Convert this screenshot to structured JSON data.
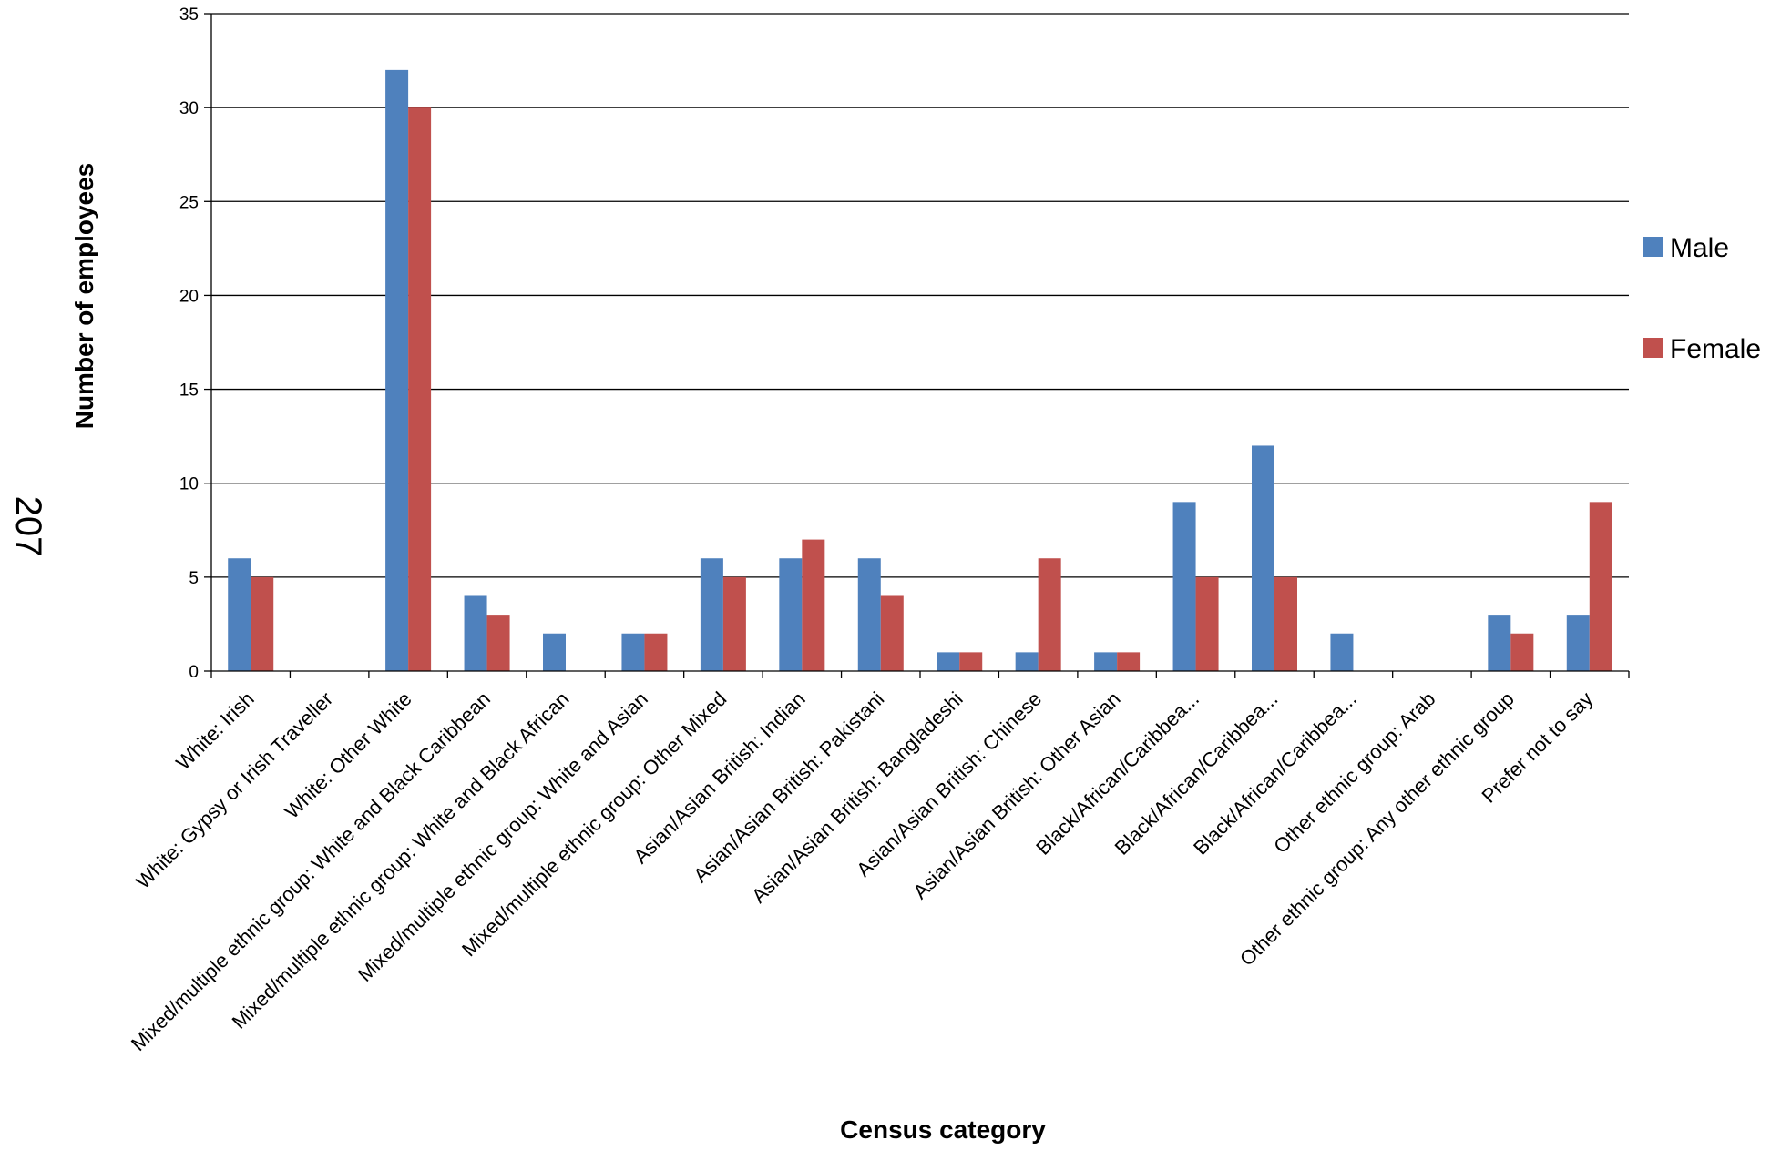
{
  "page_number": "207",
  "chart_data": {
    "type": "bar",
    "xlabel": "Census category",
    "ylabel": "Number of employees",
    "ylim": [
      0,
      35
    ],
    "yticks": [
      0,
      5,
      10,
      15,
      20,
      25,
      30,
      35
    ],
    "grid": true,
    "legend_position": "right",
    "categories": [
      "White: Irish",
      "White: Gypsy or Irish Traveller",
      "White: Other White",
      "Mixed/multiple ethnic group: White and Black Caribbean",
      "Mixed/multiple ethnic group: White and Black African",
      "Mixed/multiple ethnic group: White and Asian",
      "Mixed/multiple ethnic group: Other Mixed",
      "Asian/Asian British: Indian",
      "Asian/Asian British: Pakistani",
      "Asian/Asian British: Bangladeshi",
      "Asian/Asian British: Chinese",
      "Asian/Asian British: Other Asian",
      "Black/African/Caribbea...",
      "Black/African/Caribbea...",
      "Black/African/Caribbea...",
      "Other ethnic group: Arab",
      "Other ethnic group: Any other ethnic group",
      "Prefer not to say"
    ],
    "series": [
      {
        "name": "Male",
        "color": "#4f81bd",
        "values": [
          6,
          0,
          32,
          4,
          2,
          2,
          6,
          6,
          6,
          1,
          1,
          1,
          9,
          12,
          2,
          0,
          3,
          3
        ]
      },
      {
        "name": "Female",
        "color": "#c0504d",
        "values": [
          5,
          0,
          30,
          3,
          0,
          2,
          5,
          7,
          4,
          1,
          6,
          1,
          5,
          5,
          0,
          0,
          2,
          9
        ]
      }
    ]
  }
}
